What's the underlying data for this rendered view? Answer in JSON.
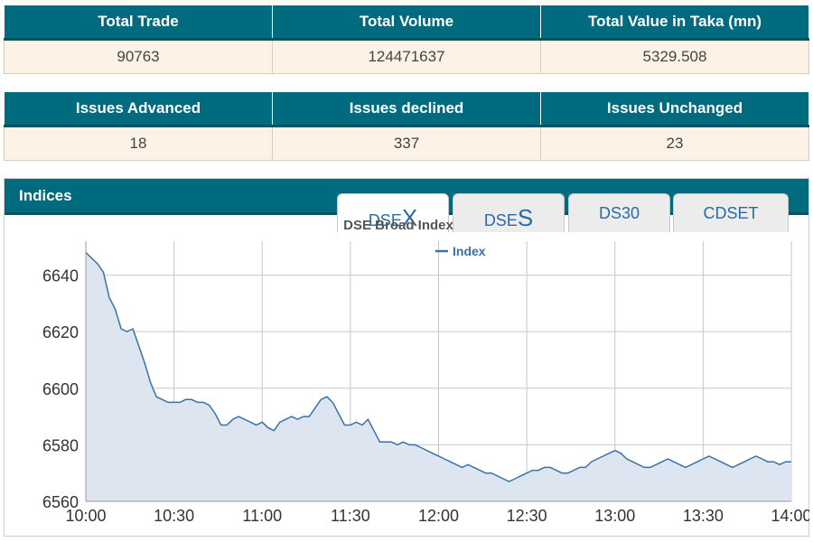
{
  "market_summary": {
    "headers": [
      "Total Trade",
      "Total Volume",
      "Total Value in Taka (mn)"
    ],
    "values": [
      "90763",
      "124471637",
      "5329.508"
    ]
  },
  "issues": {
    "headers": [
      "Issues Advanced",
      "Issues declined",
      "Issues Unchanged"
    ],
    "values": [
      "18",
      "337",
      "23"
    ]
  },
  "indices": {
    "title": "Indices",
    "tabs": [
      {
        "prefix": "DSE",
        "suffix": "X",
        "active": true
      },
      {
        "prefix": "DSE",
        "suffix": "S",
        "active": false
      },
      {
        "prefix": "DS30",
        "suffix": "",
        "active": false
      },
      {
        "prefix": "CDSET",
        "suffix": "",
        "active": false
      }
    ]
  },
  "colors": {
    "header_bg": "#006a7f",
    "cell_bg": "#fcf2e6",
    "series_line": "#3a72a6",
    "series_fill": "#dde6f0"
  },
  "chart_data": {
    "type": "area",
    "title": "DSE Broad Index",
    "xlabel": "",
    "ylabel": "",
    "legend": {
      "position": "top-center",
      "entries": [
        "Index"
      ]
    },
    "grid": true,
    "xlim": [
      "10:00",
      "14:00"
    ],
    "ylim": [
      6560,
      6652
    ],
    "x_ticks": [
      "10:00",
      "10:30",
      "11:00",
      "11:30",
      "12:00",
      "12:30",
      "13:00",
      "13:30",
      "14:00"
    ],
    "y_ticks": [
      6560,
      6580,
      6600,
      6620,
      6640
    ],
    "series": [
      {
        "name": "Index",
        "x": [
          "10:00",
          "10:02",
          "10:04",
          "10:06",
          "10:08",
          "10:10",
          "10:12",
          "10:14",
          "10:16",
          "10:18",
          "10:20",
          "10:22",
          "10:24",
          "10:26",
          "10:28",
          "10:30",
          "10:32",
          "10:34",
          "10:36",
          "10:38",
          "10:40",
          "10:42",
          "10:44",
          "10:46",
          "10:48",
          "10:50",
          "10:52",
          "10:54",
          "10:56",
          "10:58",
          "11:00",
          "11:02",
          "11:04",
          "11:06",
          "11:08",
          "11:10",
          "11:12",
          "11:14",
          "11:16",
          "11:18",
          "11:20",
          "11:22",
          "11:24",
          "11:26",
          "11:28",
          "11:30",
          "11:32",
          "11:34",
          "11:36",
          "11:38",
          "11:40",
          "11:42",
          "11:44",
          "11:46",
          "11:48",
          "11:50",
          "11:52",
          "11:54",
          "11:56",
          "11:58",
          "12:00",
          "12:02",
          "12:04",
          "12:06",
          "12:08",
          "12:10",
          "12:12",
          "12:14",
          "12:16",
          "12:18",
          "12:20",
          "12:22",
          "12:24",
          "12:26",
          "12:28",
          "12:30",
          "12:32",
          "12:34",
          "12:36",
          "12:38",
          "12:40",
          "12:42",
          "12:44",
          "12:46",
          "12:48",
          "12:50",
          "12:52",
          "12:54",
          "12:56",
          "12:58",
          "13:00",
          "13:02",
          "13:04",
          "13:06",
          "13:08",
          "13:10",
          "13:12",
          "13:14",
          "13:16",
          "13:18",
          "13:20",
          "13:22",
          "13:24",
          "13:26",
          "13:28",
          "13:30",
          "13:32",
          "13:34",
          "13:36",
          "13:38",
          "13:40",
          "13:42",
          "13:44",
          "13:46",
          "13:48",
          "13:50",
          "13:52",
          "13:54",
          "13:56",
          "13:58",
          "14:00"
        ],
        "values": [
          6648,
          6646,
          6644,
          6641,
          6632,
          6628,
          6621,
          6620,
          6621,
          6615,
          6609,
          6602,
          6597,
          6596,
          6595,
          6595,
          6595,
          6596,
          6596,
          6595,
          6595,
          6594,
          6591,
          6587,
          6587,
          6589,
          6590,
          6589,
          6588,
          6587,
          6588,
          6586,
          6585,
          6588,
          6589,
          6590,
          6589,
          6590,
          6590,
          6593,
          6596,
          6597,
          6595,
          6591,
          6587,
          6587,
          6588,
          6587,
          6589,
          6585,
          6581,
          6581,
          6581,
          6580,
          6581,
          6580,
          6580,
          6579,
          6578,
          6577,
          6576,
          6575,
          6574,
          6573,
          6572,
          6573,
          6572,
          6571,
          6570,
          6570,
          6569,
          6568,
          6567,
          6568,
          6569,
          6570,
          6571,
          6571,
          6572,
          6572,
          6571,
          6570,
          6570,
          6571,
          6572,
          6572,
          6574,
          6575,
          6576,
          6577,
          6578,
          6577,
          6575,
          6574,
          6573,
          6572,
          6572,
          6573,
          6574,
          6575,
          6574,
          6573,
          6572,
          6573,
          6574,
          6575,
          6576,
          6575,
          6574,
          6573,
          6572,
          6573,
          6574,
          6575,
          6576,
          6575,
          6574,
          6574,
          6573,
          6574,
          6574
        ]
      }
    ]
  }
}
